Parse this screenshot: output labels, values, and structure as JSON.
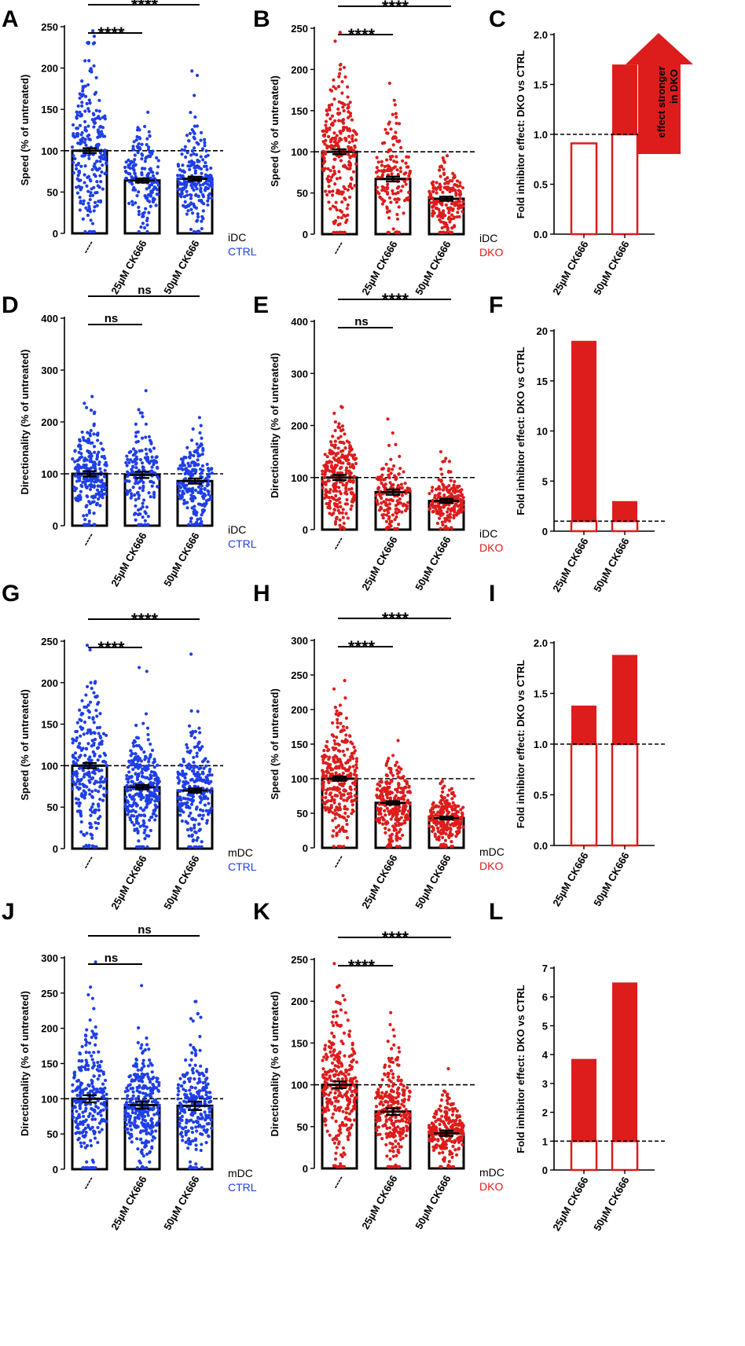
{
  "figure": {
    "colors": {
      "ctrl": "#1f3fe6",
      "dko": "#dd1c1c",
      "axis": "#000000"
    },
    "note": ""
  },
  "chart_data": [
    {
      "panel": "A",
      "type": "scatter",
      "kind": "dot",
      "color_key": "ctrl",
      "categories": [
        "----",
        "25µM CK666",
        "50µM CK666"
      ],
      "means": [
        100,
        64,
        66
      ],
      "sems": [
        3,
        2.5,
        2.5
      ],
      "ylim": [
        0,
        250
      ],
      "ticks": [
        0,
        50,
        100,
        150,
        200,
        250
      ],
      "ylabel": "Speed (% of untreated)",
      "cond_line1": "iDC",
      "cond_line2": "CTRL",
      "sig": [
        {
          "text": "****",
          "from": 0,
          "to": 1,
          "level": 0
        },
        {
          "text": "****",
          "from": 0,
          "to": 2,
          "level": 1
        }
      ],
      "npoints": [
        240,
        170,
        220
      ]
    },
    {
      "panel": "B",
      "type": "scatter",
      "kind": "dot",
      "color_key": "dko",
      "categories": [
        "----",
        "25µM CK666",
        "50µM CK666"
      ],
      "means": [
        100,
        67,
        43
      ],
      "sems": [
        3,
        3,
        2.5
      ],
      "ylim": [
        0,
        250
      ],
      "ticks": [
        0,
        50,
        100,
        150,
        200,
        250
      ],
      "ylabel": "Speed (% of untreated)",
      "cond_line1": "iDC",
      "cond_line2": "DKO",
      "sig": [
        {
          "text": "****",
          "from": 0,
          "to": 1,
          "level": 0
        },
        {
          "text": "****",
          "from": 0,
          "to": 2,
          "level": 1
        }
      ],
      "npoints": [
        260,
        150,
        190
      ]
    },
    {
      "panel": "C",
      "type": "bar",
      "kind": "fold",
      "categories": [
        "25µM CK666",
        "50µM CK666"
      ],
      "values": [
        0.91,
        1.7
      ],
      "ylim": [
        0,
        2.0
      ],
      "ticks": [
        0,
        0.5,
        1.0,
        1.5,
        2.0
      ],
      "tick_labels": [
        "0.0",
        "0.5",
        "1.0",
        "1.5",
        "2.0"
      ],
      "ylabel": "Fold inhibitor effect: DKO vs CTRL",
      "arrow_text": [
        "effect stronger",
        "in DKO"
      ]
    },
    {
      "panel": "D",
      "type": "scatter",
      "kind": "dot",
      "color_key": "ctrl",
      "categories": [
        "----",
        "25µM CK666",
        "50µM CK666"
      ],
      "means": [
        100,
        98,
        86
      ],
      "sems": [
        5,
        6,
        5
      ],
      "ylim": [
        0,
        400
      ],
      "ticks": [
        0,
        100,
        200,
        300,
        400
      ],
      "ylabel": "Directionality (% of untreated)",
      "cond_line1": "iDC",
      "cond_line2": "CTRL",
      "sig": [
        {
          "text": "ns",
          "from": 0,
          "to": 1,
          "level": 0
        },
        {
          "text": "ns",
          "from": 0,
          "to": 2,
          "level": 1
        }
      ],
      "npoints": [
        240,
        170,
        220
      ]
    },
    {
      "panel": "E",
      "type": "scatter",
      "kind": "dot",
      "color_key": "dko",
      "categories": [
        "----",
        "25µM CK666",
        "50µM CK666"
      ],
      "means": [
        100,
        72,
        55
      ],
      "sems": [
        5,
        5,
        4
      ],
      "ylim": [
        0,
        400
      ],
      "ticks": [
        0,
        100,
        200,
        300,
        400
      ],
      "ylabel": "Directionality (% of untreated)",
      "cond_line1": "iDC",
      "cond_line2": "DKO",
      "sig": [
        {
          "text": "ns",
          "from": 0,
          "to": 1,
          "level": 0
        },
        {
          "text": "****",
          "from": 0,
          "to": 2,
          "level": 1
        }
      ],
      "npoints": [
        260,
        150,
        190
      ]
    },
    {
      "panel": "F",
      "type": "bar",
      "kind": "fold",
      "categories": [
        "25µM CK666",
        "50µM CK666"
      ],
      "values": [
        19,
        3
      ],
      "ylim": [
        0,
        20
      ],
      "ticks": [
        0,
        5,
        10,
        15,
        20
      ],
      "tick_labels": [
        "0",
        "5",
        "10",
        "15",
        "20"
      ],
      "ylabel": "Fold inhibitor effect: DKO vs CTRL"
    },
    {
      "panel": "G",
      "type": "scatter",
      "kind": "dot",
      "color_key": "ctrl",
      "categories": [
        "----",
        "25µM CK666",
        "50µM CK666"
      ],
      "means": [
        100,
        74,
        70
      ],
      "sems": [
        3,
        2.5,
        2.5
      ],
      "ylim": [
        0,
        250
      ],
      "ticks": [
        0,
        50,
        100,
        150,
        200,
        250
      ],
      "ylabel": "Speed (% of untreated)",
      "cond_line1": "mDC",
      "cond_line2": "CTRL",
      "sig": [
        {
          "text": "****",
          "from": 0,
          "to": 1,
          "level": 0
        },
        {
          "text": "****",
          "from": 0,
          "to": 2,
          "level": 1
        }
      ],
      "npoints": [
        260,
        300,
        240
      ]
    },
    {
      "panel": "H",
      "type": "scatter",
      "kind": "dot",
      "color_key": "dko",
      "categories": [
        "----",
        "25µM CK666",
        "50µM CK666"
      ],
      "means": [
        100,
        65,
        43
      ],
      "sems": [
        3,
        2.5,
        2
      ],
      "ylim": [
        0,
        300
      ],
      "ticks": [
        0,
        50,
        100,
        150,
        200,
        250,
        300
      ],
      "ylabel": "Speed (% of untreated)",
      "cond_line1": "mDC",
      "cond_line2": "DKO",
      "sig": [
        {
          "text": "****",
          "from": 0,
          "to": 1,
          "level": 0
        },
        {
          "text": "****",
          "from": 0,
          "to": 2,
          "level": 1
        }
      ],
      "npoints": [
        300,
        260,
        240
      ]
    },
    {
      "panel": "I",
      "type": "bar",
      "kind": "fold",
      "categories": [
        "25µM CK666",
        "50µM CK666"
      ],
      "values": [
        1.38,
        1.88
      ],
      "ylim": [
        0,
        2.0
      ],
      "ticks": [
        0,
        0.5,
        1.0,
        1.5,
        2.0
      ],
      "tick_labels": [
        "0.0",
        "0.5",
        "1.0",
        "1.5",
        "2.0"
      ],
      "ylabel": "Fold inhibitor effect: DKO vs CTRL"
    },
    {
      "panel": "J",
      "type": "scatter",
      "kind": "dot",
      "color_key": "ctrl",
      "categories": [
        "----",
        "25µM CK666",
        "50µM CK666"
      ],
      "means": [
        100,
        91,
        90
      ],
      "sems": [
        5,
        5,
        6
      ],
      "ylim": [
        0,
        300
      ],
      "ticks": [
        0,
        50,
        100,
        150,
        200,
        250,
        300
      ],
      "ylabel": "Directionality (% of untreated)",
      "cond_line1": "mDC",
      "cond_line2": "CTRL",
      "sig": [
        {
          "text": "ns",
          "from": 0,
          "to": 1,
          "level": 0
        },
        {
          "text": "ns",
          "from": 0,
          "to": 2,
          "level": 1
        }
      ],
      "npoints": [
        260,
        300,
        240
      ]
    },
    {
      "panel": "K",
      "type": "scatter",
      "kind": "dot",
      "color_key": "dko",
      "categories": [
        "----",
        "25µM CK666",
        "50µM CK666"
      ],
      "means": [
        100,
        68,
        42
      ],
      "sems": [
        4,
        4,
        3
      ],
      "ylim": [
        0,
        250
      ],
      "ticks": [
        0,
        50,
        100,
        150,
        200,
        250
      ],
      "ylabel": "Directionality (% of untreated)",
      "cond_line1": "mDC",
      "cond_line2": "DKO",
      "sig": [
        {
          "text": "****",
          "from": 0,
          "to": 1,
          "level": 0
        },
        {
          "text": "****",
          "from": 0,
          "to": 2,
          "level": 1
        }
      ],
      "npoints": [
        300,
        260,
        240
      ]
    },
    {
      "panel": "L",
      "type": "bar",
      "kind": "fold",
      "categories": [
        "25µM CK666",
        "50µM CK666"
      ],
      "values": [
        3.85,
        6.5
      ],
      "ylim": [
        0,
        7
      ],
      "ticks": [
        0,
        1,
        2,
        3,
        4,
        5,
        6,
        7
      ],
      "tick_labels": [
        "0",
        "1",
        "2",
        "3",
        "4",
        "5",
        "6",
        "7"
      ],
      "ylabel": "Fold inhibitor effect: DKO vs CTRL"
    }
  ]
}
